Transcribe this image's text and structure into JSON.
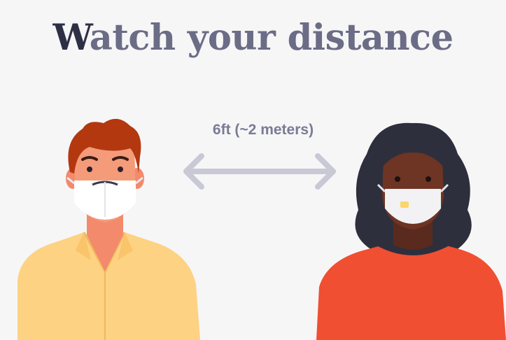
{
  "title": {
    "first_letter": "W",
    "rest": "atch your distance"
  },
  "distance": {
    "label": "6ft (~2 meters)"
  },
  "colors": {
    "background": "#f6f6f7",
    "title_text": "#6b6c86",
    "title_accent": "#2e2f45",
    "underline": "#f2a43a",
    "arrow": "#c9c9d6",
    "left_shirt": "#fdd283",
    "right_shirt": "#f04f31"
  },
  "icons": [
    "double-arrow-icon",
    "person-left-illustration",
    "person-right-illustration"
  ]
}
